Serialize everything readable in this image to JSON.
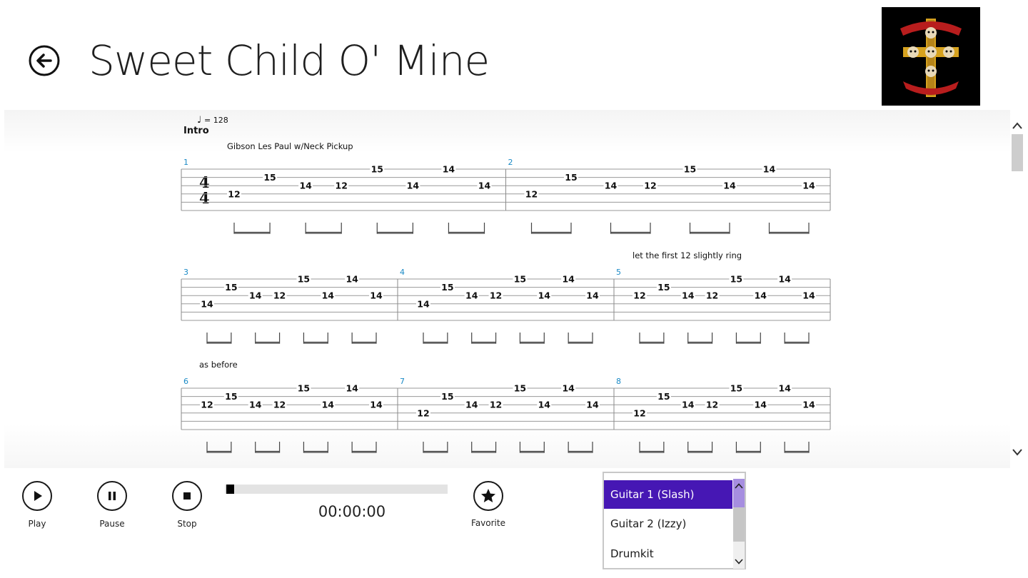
{
  "app": {
    "title": "Sweet Child O' Mine",
    "back_icon": "back-arrow-icon"
  },
  "album_art": {
    "icon": "album-cover-cross-icon",
    "colors": {
      "background": "#000000",
      "gold": "#d6a21f",
      "red": "#b81d1d"
    }
  },
  "tab": {
    "tempo_value": "= 128",
    "section_label": "Intro",
    "instrument_label": "Gibson Les Paul w/Neck Pickup",
    "ring_note": "let the first 12 slightly ring",
    "as_before_note": "as before",
    "time_signature": [
      "4",
      "4"
    ],
    "accent_color": "#1a8ac6",
    "rows": [
      {
        "measures": [
          {
            "number": "1",
            "notes": [
              {
                "fret": "12",
                "string": 4
              },
              {
                "fret": "15",
                "string": 2
              },
              {
                "fret": "14",
                "string": 3
              },
              {
                "fret": "12",
                "string": 3
              },
              {
                "fret": "15",
                "string": 1
              },
              {
                "fret": "14",
                "string": 3
              },
              {
                "fret": "14",
                "string": 1
              },
              {
                "fret": "14",
                "string": 3
              }
            ]
          },
          {
            "number": "2",
            "notes": [
              {
                "fret": "12",
                "string": 4
              },
              {
                "fret": "15",
                "string": 2
              },
              {
                "fret": "14",
                "string": 3
              },
              {
                "fret": "12",
                "string": 3
              },
              {
                "fret": "15",
                "string": 1
              },
              {
                "fret": "14",
                "string": 3
              },
              {
                "fret": "14",
                "string": 1
              },
              {
                "fret": "14",
                "string": 3
              }
            ]
          }
        ]
      },
      {
        "measures": [
          {
            "number": "3",
            "notes": [
              {
                "fret": "14",
                "string": 4
              },
              {
                "fret": "15",
                "string": 2
              },
              {
                "fret": "14",
                "string": 3
              },
              {
                "fret": "12",
                "string": 3
              },
              {
                "fret": "15",
                "string": 1
              },
              {
                "fret": "14",
                "string": 3
              },
              {
                "fret": "14",
                "string": 1
              },
              {
                "fret": "14",
                "string": 3
              }
            ]
          },
          {
            "number": "4",
            "notes": [
              {
                "fret": "14",
                "string": 4
              },
              {
                "fret": "15",
                "string": 2
              },
              {
                "fret": "14",
                "string": 3
              },
              {
                "fret": "12",
                "string": 3
              },
              {
                "fret": "15",
                "string": 1
              },
              {
                "fret": "14",
                "string": 3
              },
              {
                "fret": "14",
                "string": 1
              },
              {
                "fret": "14",
                "string": 3
              }
            ]
          },
          {
            "number": "5",
            "notes": [
              {
                "fret": "12",
                "string": 3
              },
              {
                "fret": "15",
                "string": 2
              },
              {
                "fret": "14",
                "string": 3
              },
              {
                "fret": "12",
                "string": 3
              },
              {
                "fret": "15",
                "string": 1
              },
              {
                "fret": "14",
                "string": 3
              },
              {
                "fret": "14",
                "string": 1
              },
              {
                "fret": "14",
                "string": 3
              }
            ]
          }
        ]
      },
      {
        "measures": [
          {
            "number": "6",
            "notes": [
              {
                "fret": "12",
                "string": 3
              },
              {
                "fret": "15",
                "string": 2
              },
              {
                "fret": "14",
                "string": 3
              },
              {
                "fret": "12",
                "string": 3
              },
              {
                "fret": "15",
                "string": 1
              },
              {
                "fret": "14",
                "string": 3
              },
              {
                "fret": "14",
                "string": 1
              },
              {
                "fret": "14",
                "string": 3
              }
            ]
          },
          {
            "number": "7",
            "notes": [
              {
                "fret": "12",
                "string": 4
              },
              {
                "fret": "15",
                "string": 2
              },
              {
                "fret": "14",
                "string": 3
              },
              {
                "fret": "12",
                "string": 3
              },
              {
                "fret": "15",
                "string": 1
              },
              {
                "fret": "14",
                "string": 3
              },
              {
                "fret": "14",
                "string": 1
              },
              {
                "fret": "14",
                "string": 3
              }
            ]
          },
          {
            "number": "8",
            "notes": [
              {
                "fret": "12",
                "string": 4
              },
              {
                "fret": "15",
                "string": 2
              },
              {
                "fret": "14",
                "string": 3
              },
              {
                "fret": "12",
                "string": 3
              },
              {
                "fret": "15",
                "string": 1
              },
              {
                "fret": "14",
                "string": 3
              },
              {
                "fret": "14",
                "string": 1
              },
              {
                "fret": "14",
                "string": 3
              }
            ]
          }
        ]
      }
    ]
  },
  "controls": {
    "play_label": "Play",
    "pause_label": "Pause",
    "stop_label": "Stop",
    "favorite_label": "Favorite",
    "icons": {
      "play": "play-icon",
      "pause": "pause-icon",
      "stop": "stop-icon",
      "favorite": "star-icon"
    }
  },
  "progress": {
    "fraction": 0.0,
    "time": "00:00:00"
  },
  "tracks": {
    "items": [
      "Guitar 1 (Slash)",
      "Guitar 2 (Izzy)",
      "Drumkit"
    ],
    "selected_index": 0,
    "selected_color": "#4617b4"
  }
}
